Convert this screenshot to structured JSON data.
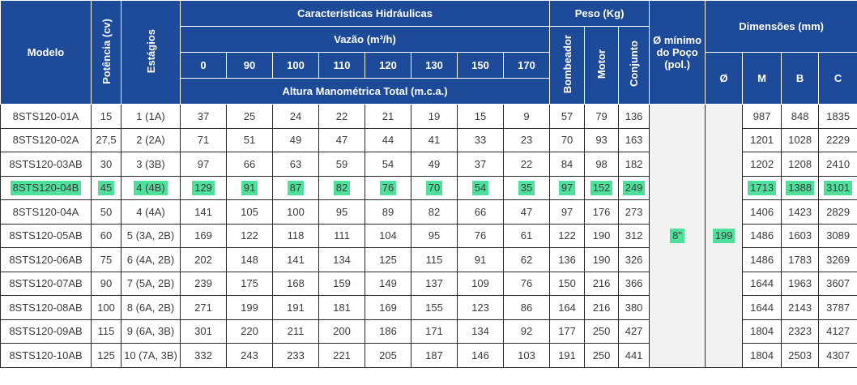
{
  "headers": {
    "modelo": "Modelo",
    "potencia": "Potência (cv)",
    "estagios": "Estágios",
    "caracteristicas": "Características Hidráulicas",
    "vazao": "Vazão (m³/h)",
    "vazao_values": [
      "0",
      "90",
      "100",
      "110",
      "120",
      "130",
      "150",
      "170"
    ],
    "altura": "Altura Manométrica Total (m.c.a.)",
    "peso": "Peso (Kg)",
    "bombeador": "Bombeador",
    "motor": "Motor",
    "conjunto": "Conjunto",
    "diametro_poco": "Ø mínimo do Poço (pol.)",
    "dimensoes": "Dimensões (mm)",
    "dim_phi": "Ø",
    "dim_m": "M",
    "dim_b": "B",
    "dim_c": "C"
  },
  "merged": {
    "poco_value": "8\"",
    "phi_value": "199"
  },
  "highlight_color": "#4fe09b",
  "header_color": "#1e4a9a",
  "rows": [
    {
      "modelo": "8STS120-01A",
      "potencia": "15",
      "estagios": "1 (1A)",
      "alturas": [
        "37",
        "25",
        "24",
        "22",
        "21",
        "19",
        "15",
        "9"
      ],
      "bombeador": "57",
      "motor": "79",
      "conjunto": "136",
      "m": "987",
      "b": "848",
      "c": "1835"
    },
    {
      "modelo": "8STS120-02A",
      "potencia": "27,5",
      "estagios": "2 (2A)",
      "alturas": [
        "71",
        "51",
        "49",
        "47",
        "44",
        "41",
        "33",
        "23"
      ],
      "bombeador": "70",
      "motor": "93",
      "conjunto": "163",
      "m": "1201",
      "b": "1028",
      "c": "2229"
    },
    {
      "modelo": "8STS120-03AB",
      "potencia": "30",
      "estagios": "3 (3B)",
      "alturas": [
        "97",
        "66",
        "63",
        "59",
        "54",
        "49",
        "37",
        "22"
      ],
      "bombeador": "84",
      "motor": "98",
      "conjunto": "182",
      "m": "1202",
      "b": "1208",
      "c": "2410"
    },
    {
      "modelo": "8STS120-04B",
      "potencia": "45",
      "estagios": "4 (4B)",
      "alturas": [
        "129",
        "91",
        "87",
        "82",
        "76",
        "70",
        "54",
        "35"
      ],
      "bombeador": "97",
      "motor": "152",
      "conjunto": "249",
      "m": "1713",
      "b": "1388",
      "c": "3101",
      "highlight": true
    },
    {
      "modelo": "8STS120-04A",
      "potencia": "50",
      "estagios": "4 (4A)",
      "alturas": [
        "141",
        "105",
        "100",
        "95",
        "89",
        "82",
        "66",
        "47"
      ],
      "bombeador": "97",
      "motor": "176",
      "conjunto": "273",
      "m": "1406",
      "b": "1423",
      "c": "2829"
    },
    {
      "modelo": "8STS120-05AB",
      "potencia": "60",
      "estagios": "5 (3A, 2B)",
      "alturas": [
        "169",
        "122",
        "118",
        "111",
        "104",
        "95",
        "76",
        "61"
      ],
      "bombeador": "122",
      "motor": "190",
      "conjunto": "312",
      "m": "1486",
      "b": "1603",
      "c": "3089"
    },
    {
      "modelo": "8STS120-06AB",
      "potencia": "75",
      "estagios": "6 (4A, 2B)",
      "alturas": [
        "202",
        "148",
        "141",
        "134",
        "125",
        "115",
        "91",
        "62"
      ],
      "bombeador": "136",
      "motor": "190",
      "conjunto": "326",
      "m": "1486",
      "b": "1783",
      "c": "3269"
    },
    {
      "modelo": "8STS120-07AB",
      "potencia": "90",
      "estagios": "7 (5A, 2B)",
      "alturas": [
        "239",
        "175",
        "168",
        "159",
        "149",
        "137",
        "109",
        "76"
      ],
      "bombeador": "150",
      "motor": "216",
      "conjunto": "366",
      "m": "1644",
      "b": "1963",
      "c": "3607"
    },
    {
      "modelo": "8STS120-08AB",
      "potencia": "100",
      "estagios": "8 (6A, 2B)",
      "alturas": [
        "271",
        "199",
        "191",
        "181",
        "169",
        "155",
        "123",
        "86"
      ],
      "bombeador": "164",
      "motor": "216",
      "conjunto": "380",
      "m": "1644",
      "b": "2143",
      "c": "3787"
    },
    {
      "modelo": "8STS120-09AB",
      "potencia": "115",
      "estagios": "9 (6A, 3B)",
      "alturas": [
        "301",
        "220",
        "211",
        "200",
        "186",
        "171",
        "134",
        "92"
      ],
      "bombeador": "177",
      "motor": "250",
      "conjunto": "427",
      "m": "1804",
      "b": "2323",
      "c": "4127"
    },
    {
      "modelo": "8STS120-10AB",
      "potencia": "125",
      "estagios": "10 (7A, 3B)",
      "alturas": [
        "332",
        "243",
        "233",
        "221",
        "205",
        "187",
        "146",
        "103"
      ],
      "bombeador": "191",
      "motor": "250",
      "conjunto": "441",
      "m": "1804",
      "b": "2503",
      "c": "4307"
    }
  ]
}
